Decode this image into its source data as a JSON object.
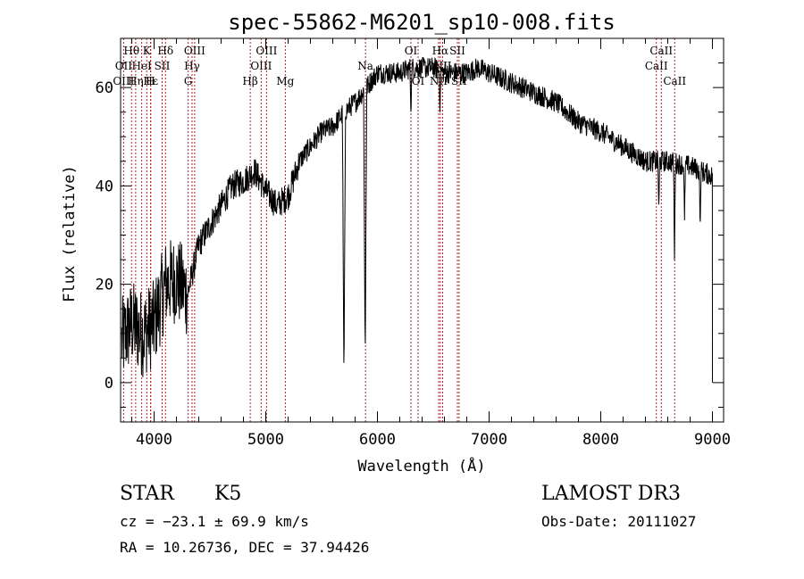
{
  "chart_data": {
    "type": "line",
    "title": "spec-55862-M6201_sp10-008.fits",
    "xlabel": "Wavelength (Å)",
    "ylabel": "Flux (relative)",
    "xlim": [
      3700,
      9100
    ],
    "ylim": [
      -8,
      70
    ],
    "xticks": [
      4000,
      5000,
      6000,
      7000,
      8000,
      9000
    ],
    "yticks": [
      0,
      20,
      40,
      60
    ],
    "line_color": "#000000",
    "marker_color": "#b22222",
    "lines": [
      {
        "label": "Hθ",
        "x": 3798,
        "row": 1
      },
      {
        "label": "OII",
        "x": 3727,
        "row": 2
      },
      {
        "label": "OIII",
        "x": 3727,
        "row": 3
      },
      {
        "label": "K",
        "x": 3934,
        "row": 1
      },
      {
        "label": "HeI",
        "x": 3889,
        "row": 2
      },
      {
        "label": "Hε",
        "x": 3970,
        "row": 3
      },
      {
        "label": "Hη",
        "x": 3835,
        "row": 3
      },
      {
        "label": "H",
        "x": 3968,
        "row": 3
      },
      {
        "label": "Hδ",
        "x": 4102,
        "row": 1
      },
      {
        "label": "SII",
        "x": 4072,
        "row": 2
      },
      {
        "label": "OIII",
        "x": 4363,
        "row": 1
      },
      {
        "label": "Hγ",
        "x": 4340,
        "row": 2
      },
      {
        "label": "G",
        "x": 4305,
        "row": 3
      },
      {
        "label": "OIII",
        "x": 5007,
        "row": 1
      },
      {
        "label": "OIII",
        "x": 4959,
        "row": 2
      },
      {
        "label": "Hβ",
        "x": 4861,
        "row": 3
      },
      {
        "label": "Mg",
        "x": 5175,
        "row": 3
      },
      {
        "label": "Na",
        "x": 5893,
        "row": 2
      },
      {
        "label": "OI",
        "x": 6300,
        "row": 1
      },
      {
        "label": "OI",
        "x": 6364,
        "row": 3
      },
      {
        "label": "Hα",
        "x": 6563,
        "row": 1
      },
      {
        "label": "SII",
        "x": 6716,
        "row": 1
      },
      {
        "label": "NII",
        "x": 6548,
        "row": 2
      },
      {
        "label": "NII",
        "x": 6584,
        "row": 2
      },
      {
        "label": "SII",
        "x": 6731,
        "row": 3
      },
      {
        "label": "NII",
        "x": 6548,
        "row": 3
      },
      {
        "label": "CaII",
        "x": 8542,
        "row": 1
      },
      {
        "label": "CaII",
        "x": 8498,
        "row": 2
      },
      {
        "label": "CaII",
        "x": 8662,
        "row": 3
      }
    ],
    "continuum": [
      [
        3700,
        8
      ],
      [
        3800,
        12
      ],
      [
        3900,
        10
      ],
      [
        4000,
        12
      ],
      [
        4100,
        20
      ],
      [
        4200,
        21
      ],
      [
        4300,
        18
      ],
      [
        4400,
        28
      ],
      [
        4500,
        32
      ],
      [
        4600,
        36
      ],
      [
        4700,
        40
      ],
      [
        4800,
        41
      ],
      [
        4900,
        43
      ],
      [
        5000,
        39
      ],
      [
        5100,
        36
      ],
      [
        5200,
        38
      ],
      [
        5300,
        45
      ],
      [
        5400,
        48
      ],
      [
        5500,
        51
      ],
      [
        5600,
        52
      ],
      [
        5700,
        55
      ],
      [
        5800,
        57
      ],
      [
        5900,
        60
      ],
      [
        6000,
        63
      ],
      [
        6100,
        63
      ],
      [
        6200,
        63
      ],
      [
        6300,
        64
      ],
      [
        6400,
        64
      ],
      [
        6500,
        64
      ],
      [
        6600,
        63
      ],
      [
        6700,
        63
      ],
      [
        6800,
        63
      ],
      [
        6900,
        64
      ],
      [
        7000,
        63
      ],
      [
        7200,
        61
      ],
      [
        7400,
        59
      ],
      [
        7600,
        57
      ],
      [
        7800,
        53
      ],
      [
        8000,
        51
      ],
      [
        8200,
        48
      ],
      [
        8400,
        45
      ],
      [
        8600,
        45
      ],
      [
        8800,
        44
      ],
      [
        9000,
        42
      ]
    ],
    "absorptions": [
      [
        5700,
        0
      ],
      [
        5890,
        4
      ],
      [
        6300,
        54
      ],
      [
        6560,
        55
      ],
      [
        8520,
        35
      ],
      [
        8660,
        25
      ],
      [
        8890,
        31
      ],
      [
        8750,
        33
      ]
    ]
  },
  "footer": {
    "object_class": "STAR",
    "subclass": "K5",
    "cz": "cz = −23.1 ± 69.9 km/s",
    "coords": "RA =  10.26736, DEC =  37.94426",
    "survey": "LAMOST DR3",
    "obs_date": "Obs-Date: 20111027"
  }
}
